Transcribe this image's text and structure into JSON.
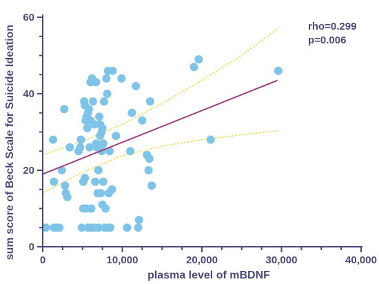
{
  "chart_data": {
    "type": "scatter",
    "xlabel": "plasma level of mBDNF",
    "ylabel": "sum score of Beck Scale for Suicide Ideation",
    "xlim": [
      0,
      40000
    ],
    "ylim": [
      0,
      60
    ],
    "x_ticks": [
      0,
      10000,
      20000,
      30000,
      40000
    ],
    "x_tick_labels": [
      "0",
      "10,000",
      "20,000",
      "30,000",
      "40,000"
    ],
    "y_ticks": [
      0,
      20,
      40,
      60
    ],
    "y_tick_labels": [
      "0",
      "20",
      "40",
      "60"
    ],
    "annotations": [
      "rho=0.299",
      "p=0.006"
    ],
    "point_color": "#7ec4e8",
    "regression_color": "#9b3f7e",
    "ci_color": "#e8e050",
    "axis_color": "#4a4a7a",
    "points": [
      [
        400,
        5
      ],
      [
        1400,
        5
      ],
      [
        1700,
        5
      ],
      [
        2100,
        5
      ],
      [
        1300,
        28
      ],
      [
        1400,
        17
      ],
      [
        2400,
        20
      ],
      [
        2700,
        36
      ],
      [
        2800,
        16
      ],
      [
        2900,
        14
      ],
      [
        3100,
        13
      ],
      [
        3400,
        26
      ],
      [
        4500,
        25
      ],
      [
        4700,
        26
      ],
      [
        4800,
        28
      ],
      [
        4900,
        5
      ],
      [
        5100,
        10
      ],
      [
        5100,
        17
      ],
      [
        5200,
        38
      ],
      [
        5300,
        18
      ],
      [
        5300,
        37
      ],
      [
        5400,
        33
      ],
      [
        5500,
        34
      ],
      [
        5500,
        10
      ],
      [
        5600,
        31
      ],
      [
        5700,
        35
      ],
      [
        5700,
        5
      ],
      [
        5800,
        36
      ],
      [
        5900,
        26
      ],
      [
        6000,
        33
      ],
      [
        6000,
        43
      ],
      [
        6100,
        10
      ],
      [
        6100,
        5
      ],
      [
        6200,
        44
      ],
      [
        6300,
        38
      ],
      [
        6400,
        5
      ],
      [
        6500,
        32
      ],
      [
        6600,
        17
      ],
      [
        6700,
        43
      ],
      [
        6700,
        27
      ],
      [
        6800,
        26
      ],
      [
        6900,
        14
      ],
      [
        7000,
        20
      ],
      [
        7000,
        5
      ],
      [
        7100,
        34
      ],
      [
        7200,
        32
      ],
      [
        7200,
        29
      ],
      [
        7300,
        26
      ],
      [
        7300,
        14
      ],
      [
        7400,
        30
      ],
      [
        7400,
        25
      ],
      [
        7500,
        31
      ],
      [
        7500,
        11
      ],
      [
        7600,
        27
      ],
      [
        7600,
        17
      ],
      [
        7700,
        38
      ],
      [
        7800,
        5
      ],
      [
        7900,
        10
      ],
      [
        8000,
        44
      ],
      [
        8100,
        40
      ],
      [
        8200,
        46
      ],
      [
        8300,
        14
      ],
      [
        8300,
        5
      ],
      [
        8400,
        25
      ],
      [
        8500,
        5
      ],
      [
        8700,
        15
      ],
      [
        8800,
        46
      ],
      [
        9200,
        29
      ],
      [
        9900,
        44
      ],
      [
        10600,
        5
      ],
      [
        11000,
        25
      ],
      [
        11200,
        35
      ],
      [
        11700,
        42
      ],
      [
        12000,
        5
      ],
      [
        12100,
        7
      ],
      [
        12500,
        33
      ],
      [
        13100,
        24
      ],
      [
        13300,
        20
      ],
      [
        13400,
        23
      ],
      [
        13500,
        38
      ],
      [
        13700,
        16
      ],
      [
        19000,
        47
      ],
      [
        19600,
        49
      ],
      [
        21100,
        28
      ],
      [
        29600,
        46
      ]
    ],
    "regression": {
      "x": [
        0,
        29500
      ],
      "y": [
        19.0,
        43.5
      ]
    },
    "ci_upper": {
      "x": [
        0,
        5000,
        10000,
        15000,
        20000,
        25000,
        29500
      ],
      "y": [
        24.0,
        27.6,
        32.0,
        37.5,
        43.5,
        50.0,
        57.0
      ]
    },
    "ci_lower": {
      "x": [
        0,
        5000,
        10000,
        15000,
        20000,
        25000,
        29500
      ],
      "y": [
        14.0,
        19.5,
        23.8,
        26.3,
        28.0,
        29.3,
        30.3
      ]
    }
  }
}
